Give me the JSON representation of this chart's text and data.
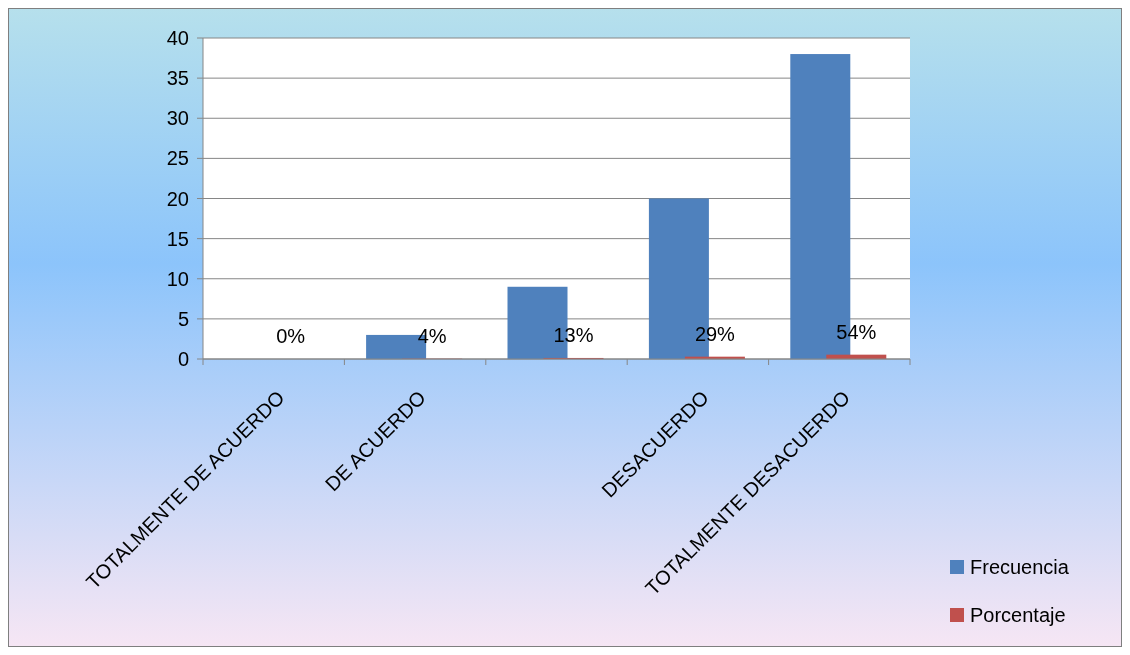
{
  "chart_data": {
    "type": "bar",
    "categories": [
      "TOTALMENTE DE ACUERDO",
      "DE ACUERDO",
      null,
      "DESACUERDO",
      "TOTALMENTE DESACUERDO"
    ],
    "series": [
      {
        "name": "Frecuencia",
        "color": "#4f81bd",
        "values": [
          0,
          3,
          9,
          20,
          38
        ]
      },
      {
        "name": "Porcentaje",
        "color": "#c0504d",
        "values": [
          0,
          0.04,
          0.13,
          0.29,
          0.54
        ],
        "value_labels": [
          "0%",
          "4%",
          "13%",
          "29%",
          "54%"
        ]
      }
    ],
    "ylim": [
      0,
      40
    ],
    "yticks": [
      0,
      5,
      10,
      15,
      20,
      25,
      30,
      35,
      40
    ],
    "grid": "y",
    "legend": "bottom right"
  }
}
